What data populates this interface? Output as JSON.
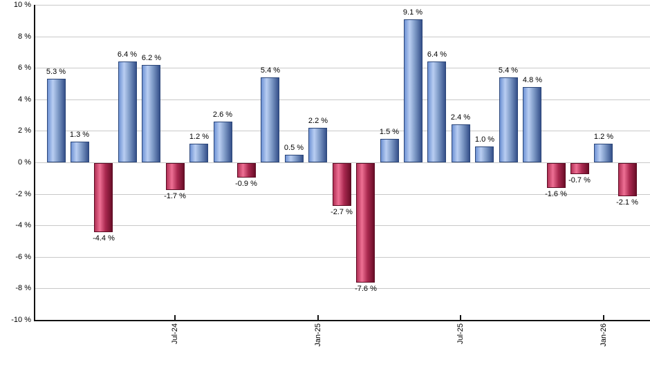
{
  "chart_data": {
    "type": "bar",
    "title": "",
    "xlabel": "",
    "ylabel": "",
    "grid": true,
    "legend": null,
    "y_axis": {
      "min": -10,
      "max": 10,
      "tick_step": 2,
      "unit": "%",
      "tick_labels": [
        "10 %",
        "8 %",
        "6 %",
        "4 %",
        "2 %",
        "0 %",
        "-2 %",
        "-4 %",
        "-6 %",
        "-8 %",
        "-10 %"
      ]
    },
    "x_axis": {
      "tick_labels": [
        {
          "label": "Jul-24",
          "bar_index": 5
        },
        {
          "label": "Jan-25",
          "bar_index": 11
        },
        {
          "label": "Jul-25",
          "bar_index": 17
        },
        {
          "label": "Jan-26",
          "bar_index": 23
        }
      ]
    },
    "bars": [
      {
        "value": 5.3,
        "label": "5.3 %"
      },
      {
        "value": 1.3,
        "label": "1.3 %"
      },
      {
        "value": -4.4,
        "label": "-4.4 %"
      },
      {
        "value": 6.4,
        "label": "6.4 %"
      },
      {
        "value": 6.2,
        "label": "6.2 %"
      },
      {
        "value": -1.7,
        "label": "-1.7 %"
      },
      {
        "value": 1.2,
        "label": "1.2 %"
      },
      {
        "value": 2.6,
        "label": "2.6 %"
      },
      {
        "value": -0.9,
        "label": "-0.9 %"
      },
      {
        "value": 5.4,
        "label": "5.4 %"
      },
      {
        "value": 0.5,
        "label": "0.5 %"
      },
      {
        "value": 2.2,
        "label": "2.2 %"
      },
      {
        "value": -2.7,
        "label": "-2.7 %"
      },
      {
        "value": -7.6,
        "label": "-7.6 %"
      },
      {
        "value": 1.5,
        "label": "1.5 %"
      },
      {
        "value": 9.1,
        "label": "9.1 %"
      },
      {
        "value": 6.4,
        "label": "6.4 %"
      },
      {
        "value": 2.4,
        "label": "2.4 %"
      },
      {
        "value": 1.0,
        "label": "1.0 %"
      },
      {
        "value": 5.4,
        "label": "5.4 %"
      },
      {
        "value": 4.8,
        "label": "4.8 %"
      },
      {
        "value": -1.6,
        "label": "-1.6 %"
      },
      {
        "value": -0.7,
        "label": "-0.7 %"
      },
      {
        "value": 1.2,
        "label": "1.2 %"
      },
      {
        "value": -2.1,
        "label": "-2.1 %"
      }
    ],
    "colors": {
      "positive": {
        "border": "#2a4578",
        "start": "#6e92d4",
        "light": "#b9cef2",
        "mid": "#7b97c4",
        "end": "#35508a"
      },
      "negative": {
        "border": "#5c0a22",
        "start": "#b03055",
        "light": "#ee7094",
        "mid": "#aa2950",
        "end": "#6a0e28"
      },
      "gridline": "#c8c8c8",
      "axis": "#111111",
      "label_text": "#000000"
    }
  }
}
